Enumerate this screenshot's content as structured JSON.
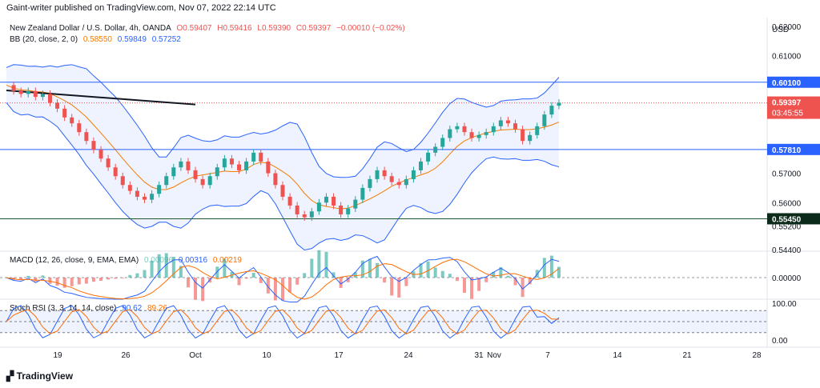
{
  "header": "Gaint-writer published on TradingView.com, Nov 07, 2022 22:14 UTC",
  "symbol": "New Zealand Dollar / U.S. Dollar, 4h, OANDA",
  "ohlc": {
    "o": "O0.59407",
    "h": "H0.59416",
    "l": "L0.59390",
    "c": "C0.59397",
    "chg": "−0.00010 (−0.02%)"
  },
  "bb": {
    "label": "BB (20, close, 2, 0)",
    "basis": "0.58550",
    "upper": "0.59849",
    "lower": "0.57252"
  },
  "macd": {
    "label": "MACD (12, 26, close, 9, EMA, EMA)",
    "hist": "0.00096",
    "macd": "0.00316",
    "signal": "0.00219"
  },
  "srsi": {
    "label": "Stoch RSI (3, 3, 14, 14, close)",
    "k": "90.62",
    "d": "89.26"
  },
  "currency": "USD",
  "logo": "TradingView",
  "colors": {
    "up": "#26a69a",
    "down": "#ef5350",
    "bb": "#2962ff",
    "basis": "#f57c00",
    "level": "#2962ff",
    "support": "#1e5631",
    "trend": "#131722"
  },
  "chart_data": {
    "type": "candlestick",
    "price_ticks": [
      "0.62000",
      "0.61000",
      "0.60100",
      "0.59397",
      "0.57810",
      "0.57000",
      "0.56000",
      "0.55450",
      "0.55200",
      "0.54400"
    ],
    "ylim": [
      0.544,
      0.623
    ],
    "x_ticks": [
      "19",
      "26",
      "Oct",
      "10",
      "17",
      "24",
      "31",
      "Nov",
      "7",
      "14",
      "21",
      "28"
    ],
    "levels": [
      {
        "label": "0.60100",
        "value": 0.601
      },
      {
        "label": "0.57810",
        "value": 0.5781
      },
      {
        "label": "0.55450",
        "value": 0.5545
      }
    ],
    "last_price": {
      "label": "0.59397",
      "timer": "03:45:55"
    },
    "macd_ticks": [
      "0.00000"
    ],
    "srsi_ticks": [
      "100.00",
      "0.00"
    ],
    "close_path": [
      0.6,
      0.598,
      0.597,
      0.598,
      0.596,
      0.597,
      0.594,
      0.592,
      0.589,
      0.587,
      0.584,
      0.581,
      0.578,
      0.575,
      0.572,
      0.569,
      0.566,
      0.564,
      0.562,
      0.561,
      0.563,
      0.566,
      0.569,
      0.572,
      0.574,
      0.571,
      0.568,
      0.566,
      0.569,
      0.572,
      0.575,
      0.573,
      0.571,
      0.574,
      0.577,
      0.574,
      0.57,
      0.566,
      0.562,
      0.559,
      0.556,
      0.555,
      0.557,
      0.56,
      0.562,
      0.559,
      0.556,
      0.558,
      0.561,
      0.565,
      0.568,
      0.571,
      0.569,
      0.567,
      0.566,
      0.568,
      0.571,
      0.574,
      0.577,
      0.579,
      0.582,
      0.585,
      0.586,
      0.584,
      0.582,
      0.583,
      0.584,
      0.586,
      0.588,
      0.587,
      0.585,
      0.581,
      0.583,
      0.586,
      0.59,
      0.593,
      0.594
    ]
  }
}
